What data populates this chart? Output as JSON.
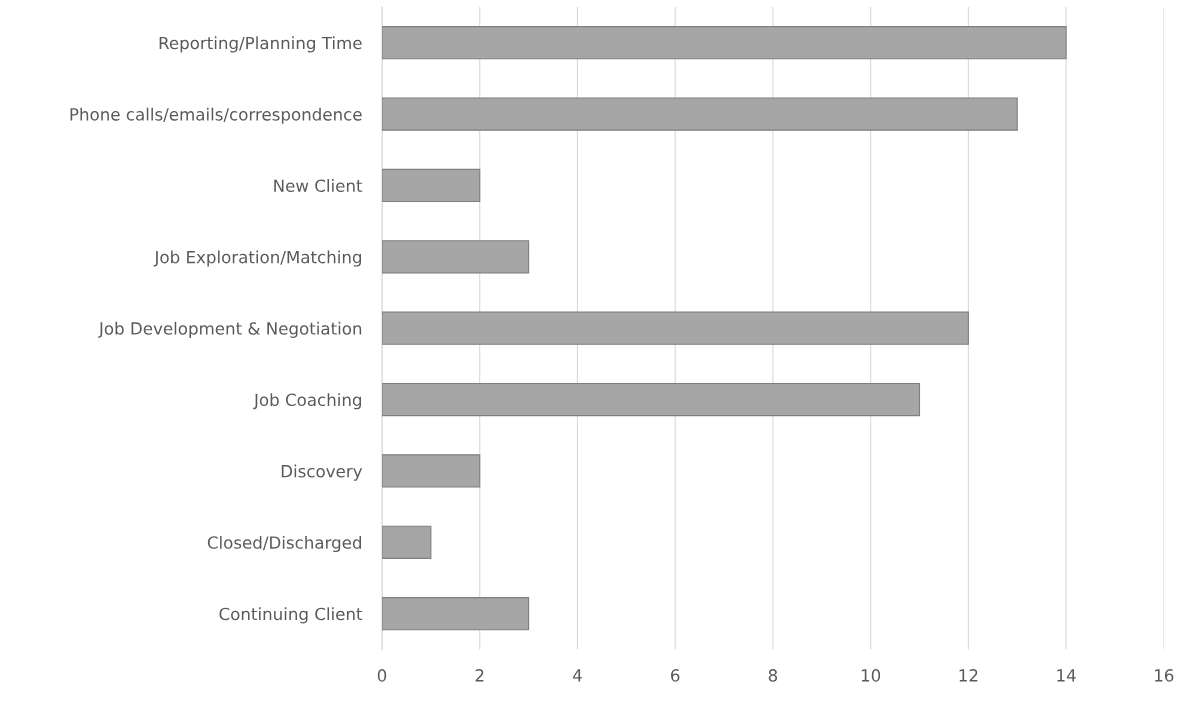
{
  "chart_data": {
    "type": "bar",
    "orientation": "horizontal",
    "categories": [
      "Reporting/Planning Time",
      "Phone calls/emails/correspondence",
      "New Client",
      "Job Exploration/Matching",
      "Job Development & Negotiation",
      "Job Coaching",
      "Discovery",
      "Closed/Discharged",
      "Continuing Client"
    ],
    "values": [
      14,
      13,
      2,
      3,
      12,
      11,
      2,
      1,
      3
    ],
    "color": "#a6a6a6",
    "xlim": [
      0,
      16
    ],
    "xticks": [
      0,
      2,
      4,
      6,
      8,
      10,
      12,
      14,
      16
    ],
    "grid": "x"
  }
}
